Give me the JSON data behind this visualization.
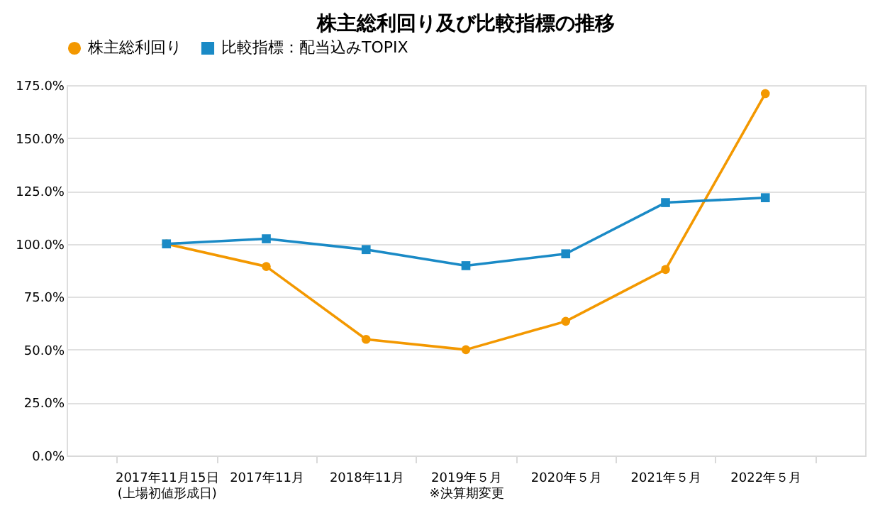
{
  "chart_data": {
    "type": "line",
    "title": "株主総利回り及び比較指標の推移",
    "categories": [
      "2017年11月15日\n(上場初値形成日)",
      "2017年11月",
      "2018年11月",
      "2019年５月\n※決算期変更",
      "2020年５月",
      "2021年５月",
      "2022年５月"
    ],
    "series": [
      {
        "name": "株主総利回り",
        "color": "#f39800",
        "marker": "circle",
        "values": [
          100,
          89.3,
          54.9,
          50.0,
          63.4,
          87.9,
          171
        ]
      },
      {
        "name": "比較指標：配当込みTOPIX",
        "color": "#1a8ac6",
        "marker": "square",
        "values": [
          100,
          102.4,
          97.3,
          89.7,
          95.3,
          119.5,
          121.8
        ]
      }
    ],
    "ylim": [
      0,
      175
    ],
    "yticks": [
      {
        "value": 0,
        "label": "0.0%"
      },
      {
        "value": 25,
        "label": "25.0%"
      },
      {
        "value": 50,
        "label": "50.0%"
      },
      {
        "value": 75,
        "label": "75.0%"
      },
      {
        "value": 100,
        "label": "100.0%"
      },
      {
        "value": 125,
        "label": "125.0%"
      },
      {
        "value": 150,
        "label": "150.0%"
      },
      {
        "value": 175,
        "label": "175.0%"
      }
    ],
    "grid": "y",
    "legend": "top",
    "line_style": "solid"
  }
}
